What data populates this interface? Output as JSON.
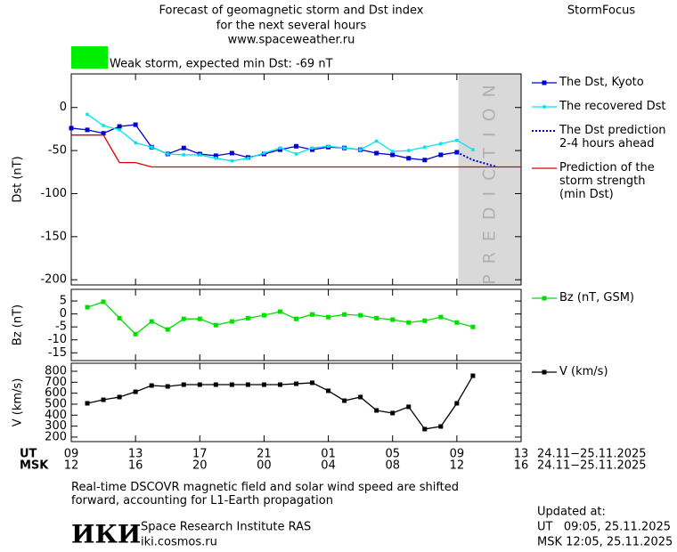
{
  "header": {
    "title_lines": [
      "Forecast of geomagnetic storm and Dst index",
      "for the next several hours",
      "www.spaceweather.ru"
    ],
    "brand": "StormFocus",
    "status": "Weak storm, expected min Dst: -69 nT",
    "status_color": "#00ee00"
  },
  "chart_data": [
    {
      "type": "line",
      "ylabel": "Dst (nT)",
      "ylim": [
        -206,
        39
      ],
      "yticks": [
        0,
        -50,
        -100,
        -150,
        -200
      ],
      "xlim": [
        0,
        28
      ],
      "shade": {
        "xlim": [
          24.1,
          28
        ],
        "label": "PREDICTION",
        "color": "#d9d9d9"
      },
      "series": [
        {
          "name": "The Dst, Kyoto",
          "color": "#0000cc",
          "marker": "square",
          "x": [
            0,
            1,
            2,
            3,
            4,
            5,
            6,
            7,
            8,
            9,
            10,
            11,
            12,
            13,
            14,
            15,
            16,
            17,
            18,
            19,
            20,
            21,
            22,
            23,
            24
          ],
          "values": [
            -24,
            -26,
            -30,
            -22,
            -20,
            -46,
            -54,
            -47,
            -54,
            -56,
            -53,
            -58,
            -54,
            -49,
            -45,
            -49,
            -46,
            -47,
            -49,
            -53,
            -55,
            -59,
            -61,
            -55,
            -52
          ]
        },
        {
          "name": "The recovered Dst",
          "color": "#00e5ee",
          "marker": "small",
          "x": [
            1,
            2,
            3,
            4,
            5,
            6,
            7,
            8,
            9,
            10,
            11,
            12,
            13,
            14,
            15,
            16,
            17,
            18,
            19,
            20,
            21,
            22,
            23,
            24,
            25
          ],
          "values": [
            -8,
            -21,
            -26,
            -41,
            -46,
            -54,
            -55,
            -55,
            -59,
            -62,
            -59,
            -53,
            -47,
            -54,
            -47,
            -45,
            -47,
            -49,
            -39,
            -51,
            -50,
            -46,
            -42,
            -38,
            -49
          ]
        },
        {
          "name": "The Dst prediction\n2-4 hours ahead",
          "color": "#0000cc",
          "marker": "none",
          "dash": true,
          "x": [
            24,
            25,
            26.5
          ],
          "values": [
            -52,
            -61,
            -69
          ]
        },
        {
          "name": "Prediction of the\nstorm strength\n(min Dst)",
          "color": "#dd0000",
          "marker": "none",
          "x": [
            0,
            2,
            3,
            4,
            5,
            28
          ],
          "values": [
            -32,
            -32,
            -64,
            -64,
            -69,
            -69
          ]
        }
      ]
    },
    {
      "type": "line",
      "ylabel": "Bz (nT)",
      "ylim": [
        -18,
        9.5
      ],
      "yticks": [
        5,
        0,
        -5,
        -10,
        -15
      ],
      "xlim": [
        0,
        28
      ],
      "series": [
        {
          "name": "Bz (nT, GSM)",
          "color": "#00dd00",
          "marker": "square",
          "x": [
            1,
            2,
            3,
            4,
            5,
            6,
            7,
            8,
            9,
            10,
            11,
            12,
            13,
            14,
            15,
            16,
            17,
            18,
            19,
            20,
            21,
            22,
            23,
            24,
            25
          ],
          "values": [
            2.6,
            4.7,
            -1.6,
            -7.8,
            -2.9,
            -6.0,
            -1.9,
            -1.9,
            -4.3,
            -2.9,
            -1.6,
            -0.5,
            0.9,
            -1.9,
            -0.2,
            -1.2,
            -0.2,
            -0.5,
            -1.6,
            -2.2,
            -3.3,
            -2.6,
            -1.2,
            -3.3,
            -5.0
          ]
        }
      ]
    },
    {
      "type": "line",
      "ylabel": "V (km/s)",
      "ylim": [
        159,
        873
      ],
      "yticks": [
        800,
        700,
        600,
        500,
        400,
        300,
        200
      ],
      "xlim": [
        0,
        28
      ],
      "xticks": [
        {
          "value": 0,
          "label": "09"
        },
        {
          "value": 4,
          "label": "13"
        },
        {
          "value": 8,
          "label": "17"
        },
        {
          "value": 12,
          "label": "21"
        },
        {
          "value": 16,
          "label": "01"
        },
        {
          "value": 20,
          "label": "05"
        },
        {
          "value": 24,
          "label": "09"
        },
        {
          "value": 28,
          "label": "13"
        }
      ],
      "msk_ticks": [
        {
          "value": 0,
          "label": "12"
        },
        {
          "value": 4,
          "label": "16"
        },
        {
          "value": 8,
          "label": "20"
        },
        {
          "value": 12,
          "label": "00"
        },
        {
          "value": 16,
          "label": "04"
        },
        {
          "value": 20,
          "label": "08"
        },
        {
          "value": 24,
          "label": "12"
        },
        {
          "value": 28,
          "label": "16"
        }
      ],
      "x_rows": [
        {
          "name": "UT",
          "range": "24.11−25.11.2025"
        },
        {
          "name": "MSK",
          "range": "24.11−25.11.2025"
        }
      ],
      "series": [
        {
          "name": "V (km/s)",
          "color": "#000000",
          "marker": "square",
          "x": [
            1,
            2,
            3,
            4,
            5,
            6,
            7,
            8,
            9,
            10,
            11,
            12,
            13,
            14,
            15,
            16,
            17,
            18,
            19,
            20,
            21,
            22,
            23,
            24,
            25
          ],
          "values": [
            508,
            540,
            565,
            613,
            670,
            662,
            678,
            678,
            678,
            678,
            678,
            678,
            678,
            686,
            695,
            622,
            532,
            565,
            443,
            419,
            476,
            273,
            297,
            508,
            759
          ]
        }
      ]
    }
  ],
  "footer": {
    "note": "Real-time DSCOVR magnetic field and solar wind speed are shifted\nforward, accounting for L1-Earth propagation",
    "logo": "ИКИ",
    "institute": "Space Research Institute RAS",
    "site": "iki.cosmos.ru",
    "updated": "Updated at:",
    "ut_time": "UT   09:05, 25.11.2025",
    "msk_time": "MSK 12:05, 25.11.2025"
  }
}
